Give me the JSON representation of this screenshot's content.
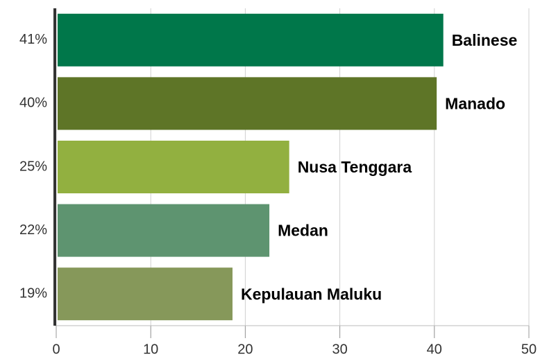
{
  "chart_data": {
    "type": "bar",
    "orientation": "horizontal",
    "categories": [
      "Balinese",
      "Manado",
      "Nusa Tenggara",
      "Medan",
      "Kepulauan Maluku"
    ],
    "values": [
      40.8,
      40.1,
      24.5,
      22.4,
      18.5
    ],
    "value_labels": [
      "41%",
      "40%",
      "25%",
      "22%",
      "19%"
    ],
    "colors": [
      "#00774a",
      "#5e7527",
      "#92b040",
      "#5e9470",
      "#86985a"
    ],
    "xlim": [
      0,
      50
    ],
    "xticks": [
      0,
      10,
      20,
      30,
      40,
      50
    ],
    "grid": true
  }
}
